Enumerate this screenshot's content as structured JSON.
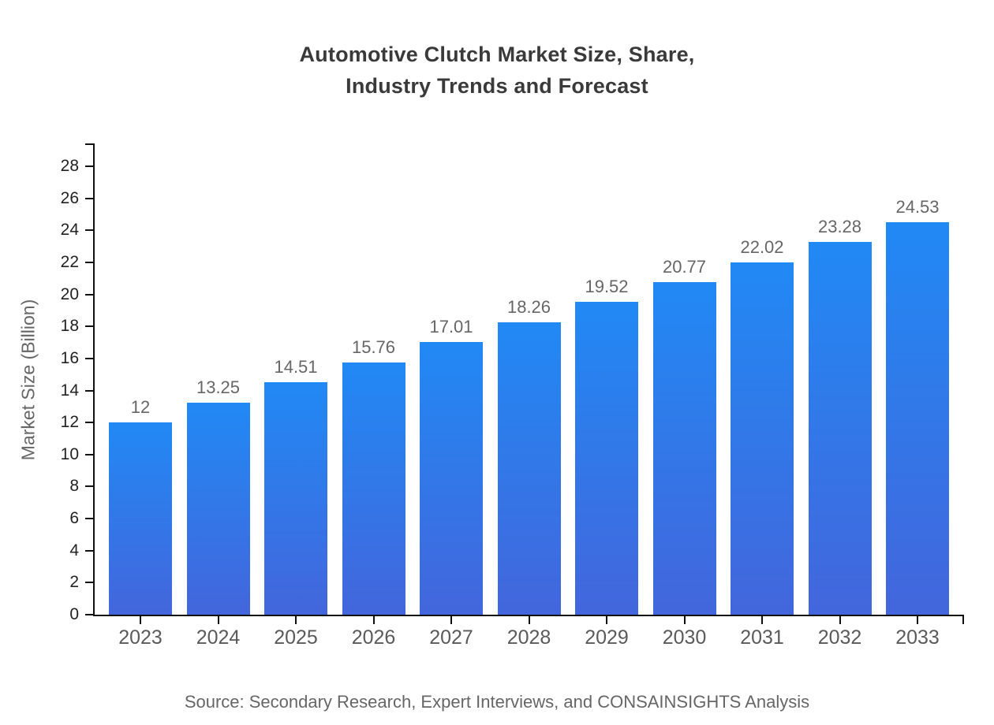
{
  "chart_data": {
    "type": "bar",
    "title": "Automotive Clutch Market Size, Share,\nIndustry Trends and Forecast",
    "xlabel": "",
    "ylabel": "Market Size (Billion)",
    "source_note": "Source: Secondary Research, Expert Interviews, and CONSAINSIGHTS Analysis",
    "categories": [
      "2023",
      "2024",
      "2025",
      "2026",
      "2027",
      "2028",
      "2029",
      "2030",
      "2031",
      "2032",
      "2033"
    ],
    "values": [
      12,
      13.25,
      14.51,
      15.76,
      17.01,
      18.26,
      19.52,
      20.77,
      22.02,
      23.28,
      24.53
    ],
    "value_labels": [
      "12",
      "13.25",
      "14.51",
      "15.76",
      "17.01",
      "18.26",
      "19.52",
      "20.77",
      "22.02",
      "23.28",
      "24.53"
    ],
    "ylim": [
      0,
      28
    ],
    "y_ticks": [
      0,
      2,
      4,
      6,
      8,
      10,
      12,
      14,
      16,
      18,
      20,
      22,
      24,
      26,
      28
    ],
    "grid": false,
    "legend": "none",
    "colors": {
      "bar_gradient_top": "#2189f4",
      "bar_gradient_bottom": "#4366dc",
      "axis": "#111111",
      "title_text": "#3a3a3a",
      "y_tick_text": "#222222",
      "x_tick_text": "#5a5a5a",
      "value_label_text": "#666666",
      "axis_title_text": "#666666",
      "source_text": "#666666"
    }
  }
}
